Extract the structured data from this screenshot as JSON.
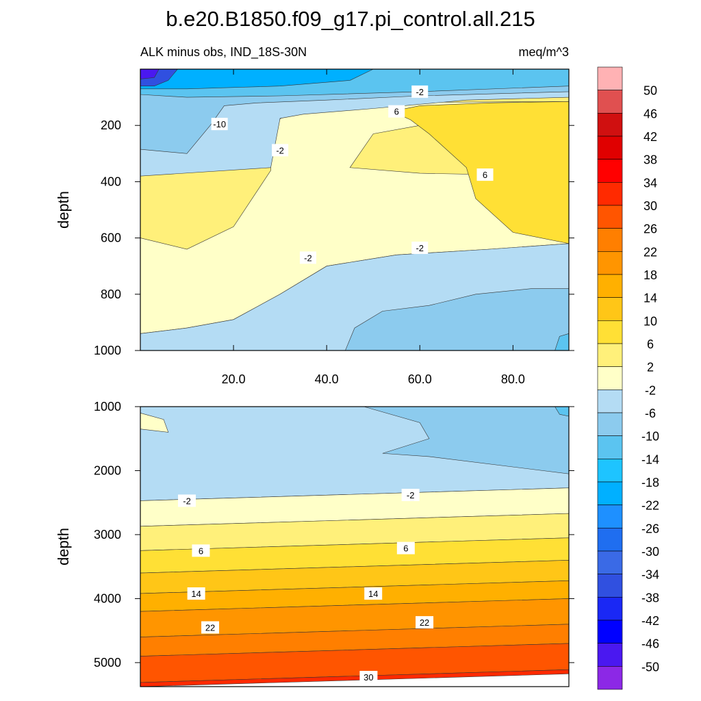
{
  "figure": {
    "title": "b.e20.B1850.f09_g17.pi_control.all.215",
    "left_string": "ALK minus obs, IND_18S-30N",
    "right_string": "meq/m^3"
  },
  "chart_data": [
    {
      "type": "heatmap",
      "panel": "upper",
      "xlabel": "",
      "ylabel": "depth",
      "xlim": [
        0,
        92
      ],
      "ylim": [
        1000,
        0
      ],
      "xticks": [
        20,
        40,
        60,
        80
      ],
      "xtick_labels": [
        "20.0",
        "40.0",
        "60.0",
        "80.0"
      ],
      "yticks": [
        200,
        400,
        600,
        800,
        1000
      ],
      "ytick_labels": [
        "200",
        "400",
        "600",
        "800",
        "1000"
      ],
      "contour_labels": [
        {
          "text": "-10",
          "x": 17,
          "y": 195
        },
        {
          "text": "-2",
          "x": 60,
          "y": 80
        },
        {
          "text": "6",
          "x": 55,
          "y": 150
        },
        {
          "text": "-2",
          "x": 30,
          "y": 288
        },
        {
          "text": "6",
          "x": 74,
          "y": 375
        },
        {
          "text": "-2",
          "x": 60,
          "y": 635
        },
        {
          "text": "-2",
          "x": 36,
          "y": 670
        }
      ],
      "regions": [
        {
          "value": -50,
          "x": [
            0,
            6
          ],
          "y": [
            0,
            60
          ]
        },
        {
          "value": -22,
          "x": [
            0,
            92
          ],
          "y": [
            0,
            70
          ]
        },
        {
          "value": -10,
          "x": [
            0,
            28
          ],
          "y": [
            70,
            290
          ]
        },
        {
          "value": -6,
          "x": [
            28,
            92
          ],
          "y": [
            650,
            1000
          ]
        },
        {
          "value": -6,
          "x": [
            44,
            92
          ],
          "y": [
            800,
            1000
          ]
        },
        {
          "value": 6,
          "x": [
            55,
            92
          ],
          "y": [
            100,
            400
          ]
        },
        {
          "value": 2,
          "x": [
            0,
            92
          ],
          "y": [
            100,
            650
          ]
        }
      ]
    },
    {
      "type": "heatmap",
      "panel": "lower",
      "xlabel": "",
      "ylabel": "depth",
      "xlim": [
        0,
        92
      ],
      "ylim": [
        5375,
        1000
      ],
      "yticks": [
        1000,
        2000,
        3000,
        4000,
        5000
      ],
      "ytick_labels": [
        "1000",
        "2000",
        "3000",
        "4000",
        "5000"
      ],
      "contour_labels": [
        {
          "text": "-2",
          "x": 10,
          "y": 2470
        },
        {
          "text": "-2",
          "x": 58,
          "y": 2380
        },
        {
          "text": "6",
          "x": 13,
          "y": 3250
        },
        {
          "text": "6",
          "x": 57,
          "y": 3210
        },
        {
          "text": "14",
          "x": 12,
          "y": 3920
        },
        {
          "text": "14",
          "x": 50,
          "y": 3920
        },
        {
          "text": "22",
          "x": 15,
          "y": 4450
        },
        {
          "text": "22",
          "x": 61,
          "y": 4370
        },
        {
          "text": "30",
          "x": 49,
          "y": 5225
        }
      ],
      "bands_left_depth": [
        {
          "value": -6,
          "top": 1000,
          "bottom": 2470
        },
        {
          "value": -2,
          "top": 2470,
          "bottom": 2870
        },
        {
          "value": 2,
          "top": 2870,
          "bottom": 3250
        },
        {
          "value": 6,
          "top": 3250,
          "bottom": 3600
        },
        {
          "value": 10,
          "top": 3600,
          "bottom": 3920
        },
        {
          "value": 14,
          "top": 3920,
          "bottom": 4200
        },
        {
          "value": 18,
          "top": 4200,
          "bottom": 4600
        },
        {
          "value": 22,
          "top": 4600,
          "bottom": 4900
        },
        {
          "value": 26,
          "top": 4900,
          "bottom": 5310
        },
        {
          "value": 30,
          "top": 5310,
          "bottom": 5375
        }
      ]
    }
  ],
  "colorbar": {
    "labels": [
      "50",
      "46",
      "42",
      "38",
      "34",
      "30",
      "26",
      "22",
      "18",
      "14",
      "10",
      "6",
      "2",
      "-2",
      "-6",
      "-10",
      "-14",
      "-18",
      "-22",
      "-26",
      "-30",
      "-34",
      "-38",
      "-42",
      "-46",
      "-50"
    ],
    "colors": [
      "#ffb2b4",
      "#e05050",
      "#d01010",
      "#e00000",
      "#ff0000",
      "#ff2a00",
      "#ff5500",
      "#ff7f00",
      "#ff9500",
      "#ffb000",
      "#ffc617",
      "#ffe035",
      "#fff07a",
      "#ffffc8",
      "#b4dcf4",
      "#8ccbee",
      "#5bc4f0",
      "#1ec4ff",
      "#00b0ff",
      "#1e90ff",
      "#1f6ef0",
      "#3a6ae6",
      "#3050e0",
      "#1a28f5",
      "#0000ff",
      "#4a18f0",
      "#8c28e6"
    ]
  }
}
